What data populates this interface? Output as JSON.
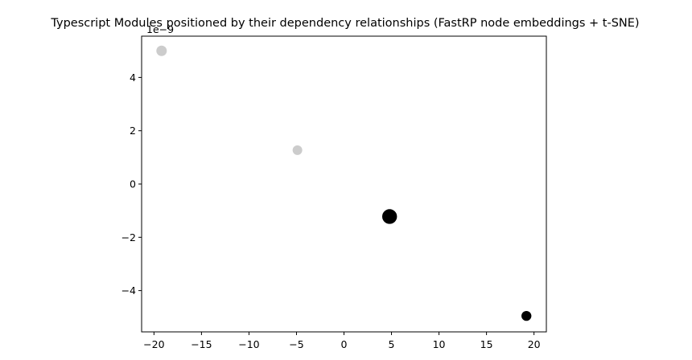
{
  "chart_data": {
    "type": "scatter",
    "title": "Typescript Modules positioned by their dependency relationships (FastRP node embeddings + t-SNE)",
    "xlabel": "",
    "ylabel": "",
    "y_offset_label": "1e−9",
    "xlim": [
      -21.3,
      21.3
    ],
    "ylim": [
      -5.55,
      5.55
    ],
    "x_ticks": [
      {
        "value": -20,
        "label": "−20"
      },
      {
        "value": -15,
        "label": "−15"
      },
      {
        "value": -10,
        "label": "−10"
      },
      {
        "value": -5,
        "label": "−5"
      },
      {
        "value": 0,
        "label": "0"
      },
      {
        "value": 5,
        "label": "5"
      },
      {
        "value": 10,
        "label": "10"
      },
      {
        "value": 15,
        "label": "15"
      },
      {
        "value": 20,
        "label": "20"
      }
    ],
    "y_ticks": [
      {
        "value": -4,
        "label": "−4"
      },
      {
        "value": -2,
        "label": "−2"
      },
      {
        "value": 0,
        "label": "0"
      },
      {
        "value": 2,
        "label": "2"
      },
      {
        "value": 4,
        "label": "4"
      }
    ],
    "grid": false,
    "points": [
      {
        "x": -19.2,
        "y": 5.0,
        "size": 1.0,
        "color": "#cccccc"
      },
      {
        "x": -4.9,
        "y": 1.27,
        "size": 0.85,
        "color": "#cccccc"
      },
      {
        "x": 4.8,
        "y": -1.22,
        "size": 2.0,
        "color": "#000000"
      },
      {
        "x": 19.2,
        "y": -4.95,
        "size": 0.9,
        "color": "#000000"
      }
    ]
  }
}
